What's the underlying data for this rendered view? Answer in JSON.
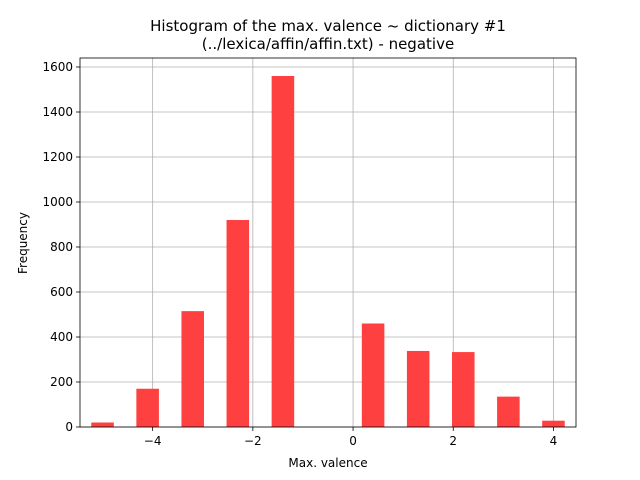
{
  "chart_data": {
    "type": "bar",
    "title_line1": "Histogram of the max. valence ~ dictionary #1",
    "title_line2": "(../lexica/affin/affin.txt) - negative",
    "xlabel": "Max. valence",
    "ylabel": "Frequency",
    "xlim": [
      -5.45,
      4.45
    ],
    "ylim": [
      0,
      1640
    ],
    "xticks": [
      -4,
      -2,
      0,
      2,
      4
    ],
    "xtick_labels": [
      "−4",
      "−2",
      "0",
      "2",
      "4"
    ],
    "yticks": [
      0,
      200,
      400,
      600,
      800,
      1000,
      1200,
      1400,
      1600
    ],
    "grid": true,
    "bar_color": "#ff4040",
    "bin_width": 0.45,
    "bars": [
      {
        "x": -5.0,
        "value": 20
      },
      {
        "x": -4.1,
        "value": 170
      },
      {
        "x": -3.2,
        "value": 515
      },
      {
        "x": -2.3,
        "value": 920
      },
      {
        "x": -1.4,
        "value": 1560
      },
      {
        "x": -0.5,
        "value": 0
      },
      {
        "x": 0.4,
        "value": 460
      },
      {
        "x": 1.3,
        "value": 338
      },
      {
        "x": 2.2,
        "value": 333
      },
      {
        "x": 3.1,
        "value": 135
      },
      {
        "x": 4.0,
        "value": 28
      }
    ]
  }
}
